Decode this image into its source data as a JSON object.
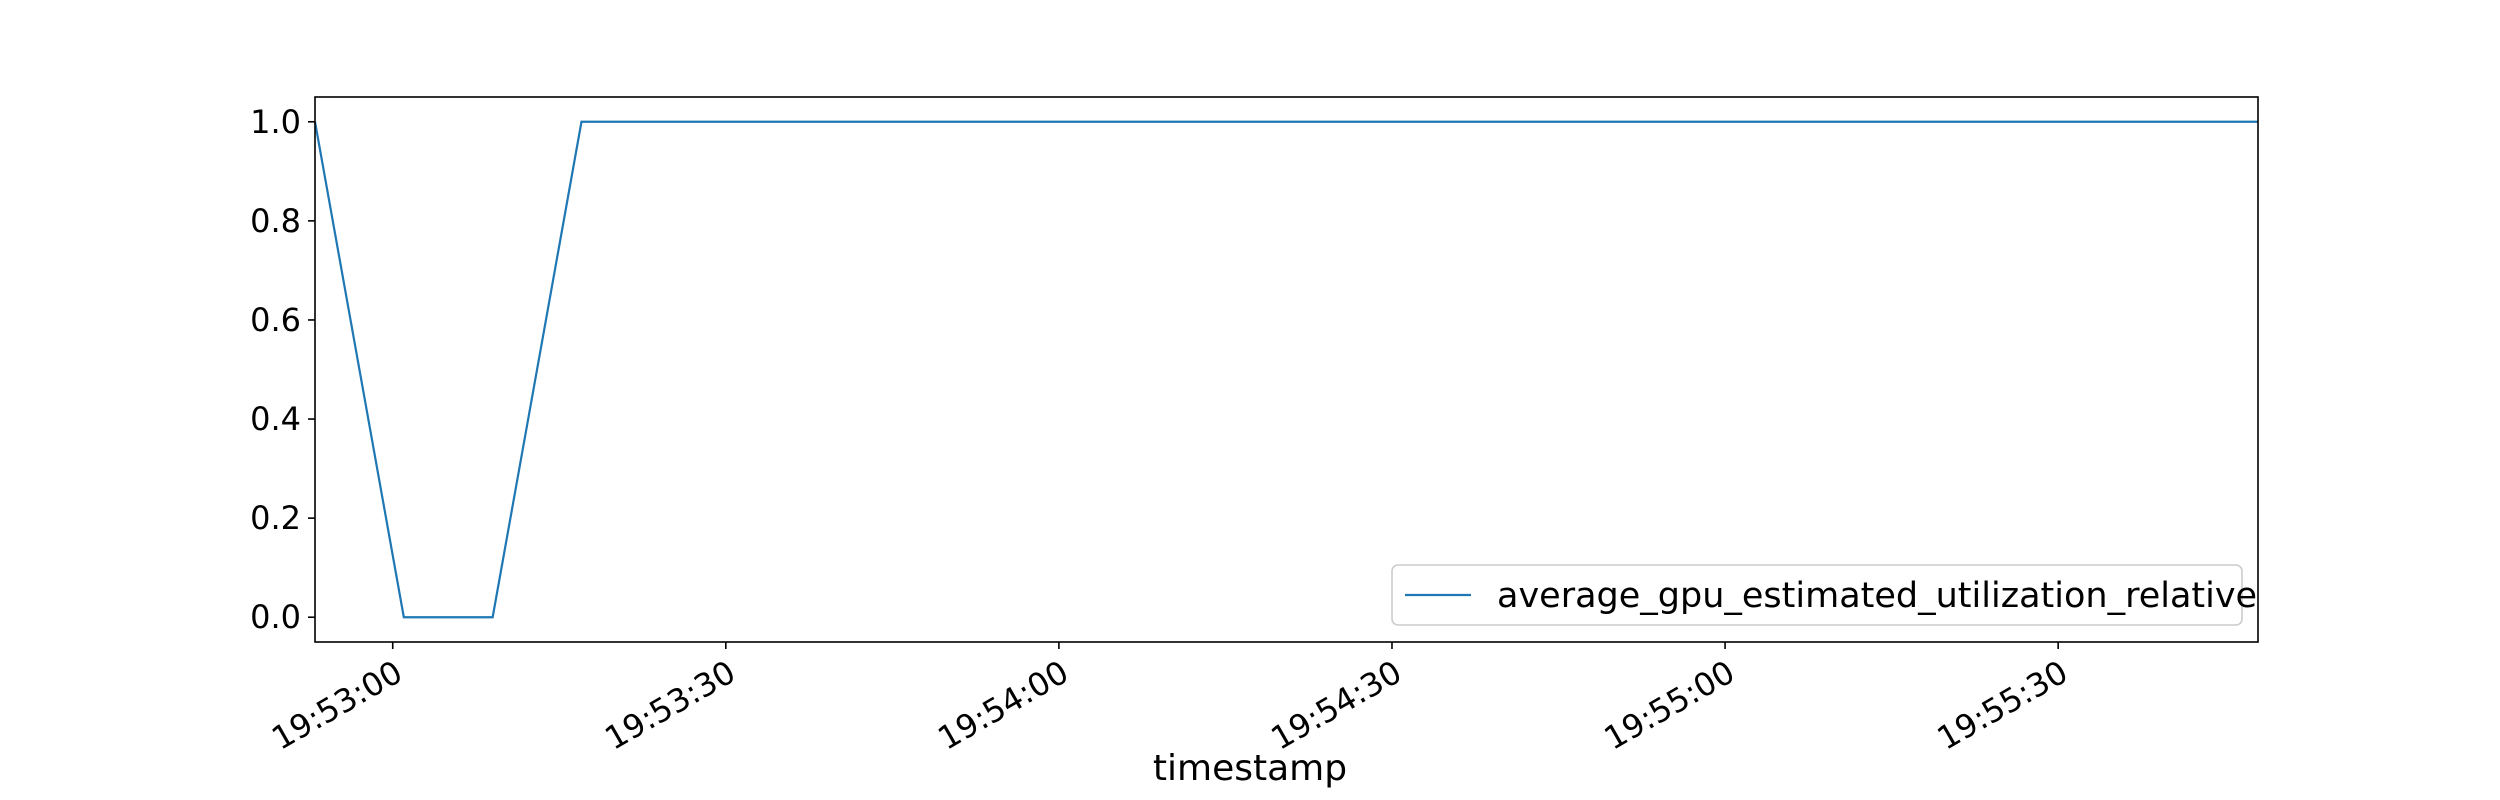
{
  "chart_data": {
    "type": "line",
    "title": "",
    "xlabel": "timestamp",
    "ylabel": "",
    "x_tick_labels": [
      "19:53:00",
      "19:53:30",
      "19:54:00",
      "19:54:30",
      "19:55:00",
      "19:55:30"
    ],
    "y_tick_labels": [
      "0.0",
      "0.2",
      "0.4",
      "0.6",
      "0.8",
      "1.0"
    ],
    "xlim": [
      "19:52:53",
      "19:55:48"
    ],
    "ylim": [
      -0.05,
      1.05
    ],
    "grid": false,
    "legend_position": "lower right",
    "series": [
      {
        "name": "average_gpu_estimated_utilization_relative",
        "color": "#1f77b4",
        "x": [
          "19:52:53",
          "19:53:01",
          "19:53:09",
          "19:53:17",
          "19:53:25",
          "19:53:33",
          "19:53:41",
          "19:53:49",
          "19:53:57",
          "19:54:05",
          "19:54:13",
          "19:54:21",
          "19:54:29",
          "19:54:37",
          "19:54:45",
          "19:54:53",
          "19:55:01",
          "19:55:09",
          "19:55:17",
          "19:55:25",
          "19:55:33",
          "19:55:41",
          "19:55:48"
        ],
        "y": [
          1.0,
          0.0,
          0.0,
          1.0,
          1.0,
          1.0,
          1.0,
          1.0,
          1.0,
          1.0,
          1.0,
          1.0,
          1.0,
          1.0,
          1.0,
          1.0,
          1.0,
          1.0,
          1.0,
          1.0,
          1.0,
          1.0,
          1.0
        ]
      }
    ]
  }
}
